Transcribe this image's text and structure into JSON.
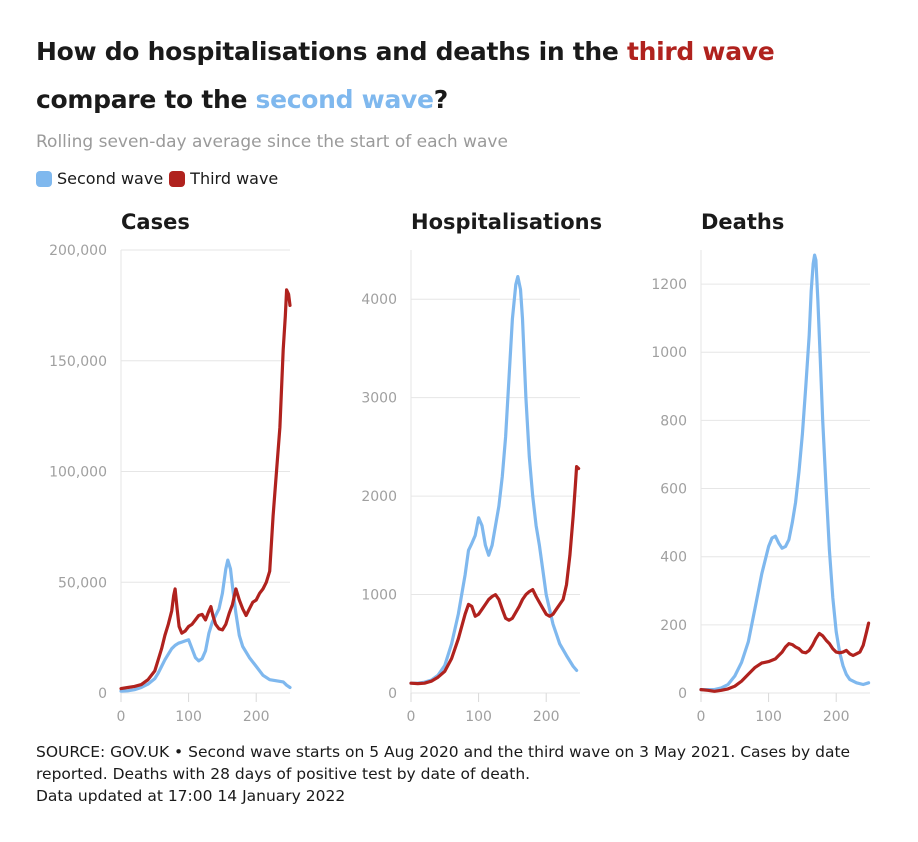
{
  "header": {
    "title_part1": "How do hospitalisations and deaths in the ",
    "title_highlight_third": "third wave",
    "title_part2": " compare to the ",
    "title_highlight_second": "second wave",
    "title_part3": "?",
    "subtitle": "Rolling seven-day average since the start of each wave"
  },
  "legend": {
    "second_label": "Second wave",
    "third_label": "Third wave",
    "second_color": "#7fb8ee",
    "third_color": "#b0221e"
  },
  "footer": {
    "line1": "SOURCE: GOV.UK • Second wave starts on 5 Aug 2020 and the third wave on 3 May 2021. Cases by date reported. Deaths with 28 days of positive test by date of death.",
    "line2": "Data updated at 17:00 14 January 2022"
  },
  "chart_data": [
    {
      "type": "line",
      "title": "Cases",
      "xlabel": "",
      "ylabel": "",
      "xlim": [
        0,
        250
      ],
      "ylim": [
        0,
        200000
      ],
      "xticks": [
        0,
        100,
        200
      ],
      "yticks": [
        0,
        50000,
        100000,
        150000,
        200000
      ],
      "ytick_labels": [
        "0",
        "50,000",
        "100,000",
        "150,000",
        "200,000"
      ],
      "series": [
        {
          "name": "Second wave",
          "x": [
            0,
            10,
            20,
            30,
            40,
            50,
            55,
            60,
            65,
            70,
            75,
            80,
            85,
            90,
            95,
            100,
            105,
            110,
            115,
            120,
            125,
            130,
            135,
            140,
            145,
            150,
            155,
            158,
            162,
            165,
            170,
            175,
            180,
            190,
            200,
            210,
            220,
            230,
            240,
            245,
            250
          ],
          "y": [
            800,
            1000,
            1500,
            2500,
            4000,
            6500,
            9000,
            12000,
            15000,
            17500,
            20000,
            21500,
            22500,
            23000,
            23500,
            24000,
            20000,
            16000,
            14500,
            15500,
            19000,
            27000,
            32000,
            35000,
            38000,
            45000,
            56000,
            60000,
            56000,
            48000,
            36000,
            26000,
            21000,
            16000,
            12000,
            8000,
            6000,
            5500,
            5000,
            3500,
            2500
          ]
        },
        {
          "name": "Third wave",
          "x": [
            0,
            10,
            20,
            30,
            40,
            50,
            55,
            60,
            65,
            70,
            75,
            78,
            80,
            83,
            86,
            90,
            95,
            100,
            105,
            110,
            115,
            120,
            125,
            130,
            133,
            136,
            140,
            145,
            150,
            155,
            160,
            165,
            170,
            175,
            180,
            185,
            190,
            195,
            200,
            205,
            210,
            215,
            220,
            225,
            230,
            235,
            240,
            243,
            245,
            248,
            250
          ],
          "y": [
            2000,
            2500,
            3000,
            3800,
            6000,
            10000,
            15000,
            20000,
            26000,
            31000,
            37000,
            44000,
            47000,
            38000,
            30000,
            27000,
            28000,
            30000,
            31000,
            33000,
            35000,
            35500,
            33000,
            37000,
            39000,
            35000,
            31000,
            29000,
            28500,
            31000,
            36000,
            40000,
            47000,
            42000,
            38000,
            35000,
            38000,
            41000,
            42000,
            45000,
            47000,
            50000,
            55000,
            80000,
            100000,
            120000,
            155000,
            170000,
            182000,
            180000,
            175000
          ]
        }
      ]
    },
    {
      "type": "line",
      "title": "Hospitalisations",
      "xlabel": "",
      "ylabel": "",
      "xlim": [
        0,
        250
      ],
      "ylim": [
        0,
        4500
      ],
      "xticks": [
        0,
        100,
        200
      ],
      "yticks": [
        0,
        1000,
        2000,
        3000,
        4000
      ],
      "ytick_labels": [
        "0",
        "1000",
        "2000",
        "3000",
        "4000"
      ],
      "series": [
        {
          "name": "Second wave",
          "x": [
            0,
            10,
            20,
            30,
            40,
            50,
            60,
            70,
            80,
            85,
            90,
            95,
            100,
            105,
            110,
            115,
            120,
            125,
            130,
            135,
            140,
            145,
            150,
            155,
            158,
            162,
            165,
            170,
            175,
            180,
            185,
            190,
            195,
            200,
            210,
            220,
            230,
            240,
            245
          ],
          "y": [
            100,
            100,
            110,
            130,
            180,
            280,
            500,
            800,
            1200,
            1450,
            1520,
            1600,
            1780,
            1700,
            1500,
            1400,
            1500,
            1700,
            1900,
            2200,
            2600,
            3200,
            3800,
            4150,
            4230,
            4100,
            3800,
            3000,
            2400,
            2000,
            1700,
            1500,
            1250,
            1000,
            700,
            500,
            380,
            270,
            230
          ]
        },
        {
          "name": "Third wave",
          "x": [
            0,
            10,
            20,
            30,
            40,
            50,
            60,
            70,
            80,
            85,
            90,
            95,
            100,
            105,
            110,
            115,
            120,
            125,
            130,
            135,
            140,
            145,
            150,
            155,
            160,
            165,
            170,
            175,
            180,
            185,
            190,
            195,
            200,
            205,
            210,
            215,
            220,
            225,
            230,
            235,
            240,
            243,
            245,
            248
          ],
          "y": [
            100,
            95,
            100,
            120,
            160,
            220,
            350,
            550,
            800,
            900,
            880,
            780,
            800,
            850,
            900,
            950,
            980,
            1000,
            950,
            850,
            760,
            740,
            760,
            820,
            880,
            950,
            1000,
            1030,
            1050,
            980,
            920,
            860,
            800,
            780,
            800,
            850,
            900,
            950,
            1100,
            1400,
            1800,
            2100,
            2300,
            2280
          ]
        }
      ]
    },
    {
      "type": "line",
      "title": "Deaths",
      "xlabel": "",
      "ylabel": "",
      "xlim": [
        0,
        250
      ],
      "ylim": [
        0,
        1300
      ],
      "xticks": [
        0,
        100,
        200
      ],
      "yticks": [
        0,
        200,
        400,
        600,
        800,
        1000,
        1200
      ],
      "ytick_labels": [
        "0",
        "200",
        "400",
        "600",
        "800",
        "1000",
        "1200"
      ],
      "series": [
        {
          "name": "Second wave",
          "x": [
            0,
            10,
            20,
            30,
            40,
            50,
            60,
            70,
            80,
            90,
            100,
            105,
            110,
            115,
            120,
            125,
            130,
            135,
            140,
            145,
            150,
            155,
            160,
            163,
            166,
            168,
            170,
            173,
            176,
            180,
            185,
            190,
            195,
            200,
            205,
            210,
            215,
            220,
            230,
            240,
            248
          ],
          "y": [
            10,
            10,
            10,
            15,
            25,
            50,
            90,
            150,
            250,
            350,
            430,
            455,
            460,
            440,
            425,
            430,
            450,
            500,
            560,
            650,
            760,
            900,
            1050,
            1180,
            1260,
            1285,
            1270,
            1150,
            1000,
            800,
            600,
            420,
            280,
            180,
            120,
            80,
            55,
            40,
            30,
            25,
            30
          ]
        },
        {
          "name": "Third wave",
          "x": [
            0,
            10,
            20,
            30,
            40,
            50,
            60,
            70,
            80,
            90,
            100,
            110,
            115,
            120,
            125,
            130,
            135,
            140,
            145,
            150,
            155,
            160,
            165,
            170,
            175,
            180,
            185,
            190,
            195,
            200,
            205,
            210,
            215,
            220,
            225,
            230,
            235,
            240,
            245,
            248
          ],
          "y": [
            10,
            8,
            5,
            8,
            12,
            20,
            35,
            55,
            75,
            88,
            92,
            100,
            110,
            120,
            135,
            145,
            142,
            135,
            130,
            120,
            118,
            125,
            140,
            160,
            175,
            168,
            155,
            145,
            130,
            120,
            118,
            120,
            125,
            115,
            110,
            115,
            120,
            140,
            180,
            205
          ]
        }
      ]
    }
  ]
}
